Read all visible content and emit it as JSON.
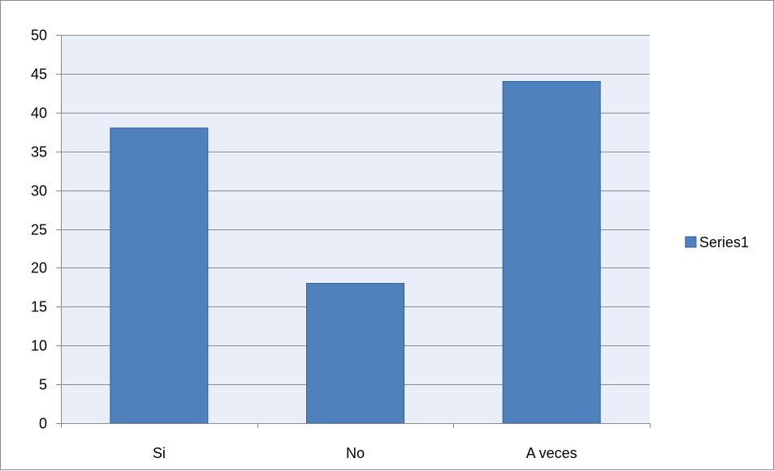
{
  "chart_data": {
    "type": "bar",
    "categories": [
      "Si",
      "No",
      "A veces"
    ],
    "series": [
      {
        "name": "Series1",
        "values": [
          38,
          18,
          44
        ],
        "color": "#4f81bd",
        "border": "#2f5f9a"
      }
    ],
    "title": "",
    "xlabel": "",
    "ylabel": "",
    "ylim": [
      0,
      50
    ],
    "yticks": [
      0,
      5,
      10,
      15,
      20,
      25,
      30,
      35,
      40,
      45,
      50
    ],
    "grid": true,
    "legend_position": "right",
    "plot_background": "#e9eef8",
    "gridline_color": "#8c8c8c"
  }
}
